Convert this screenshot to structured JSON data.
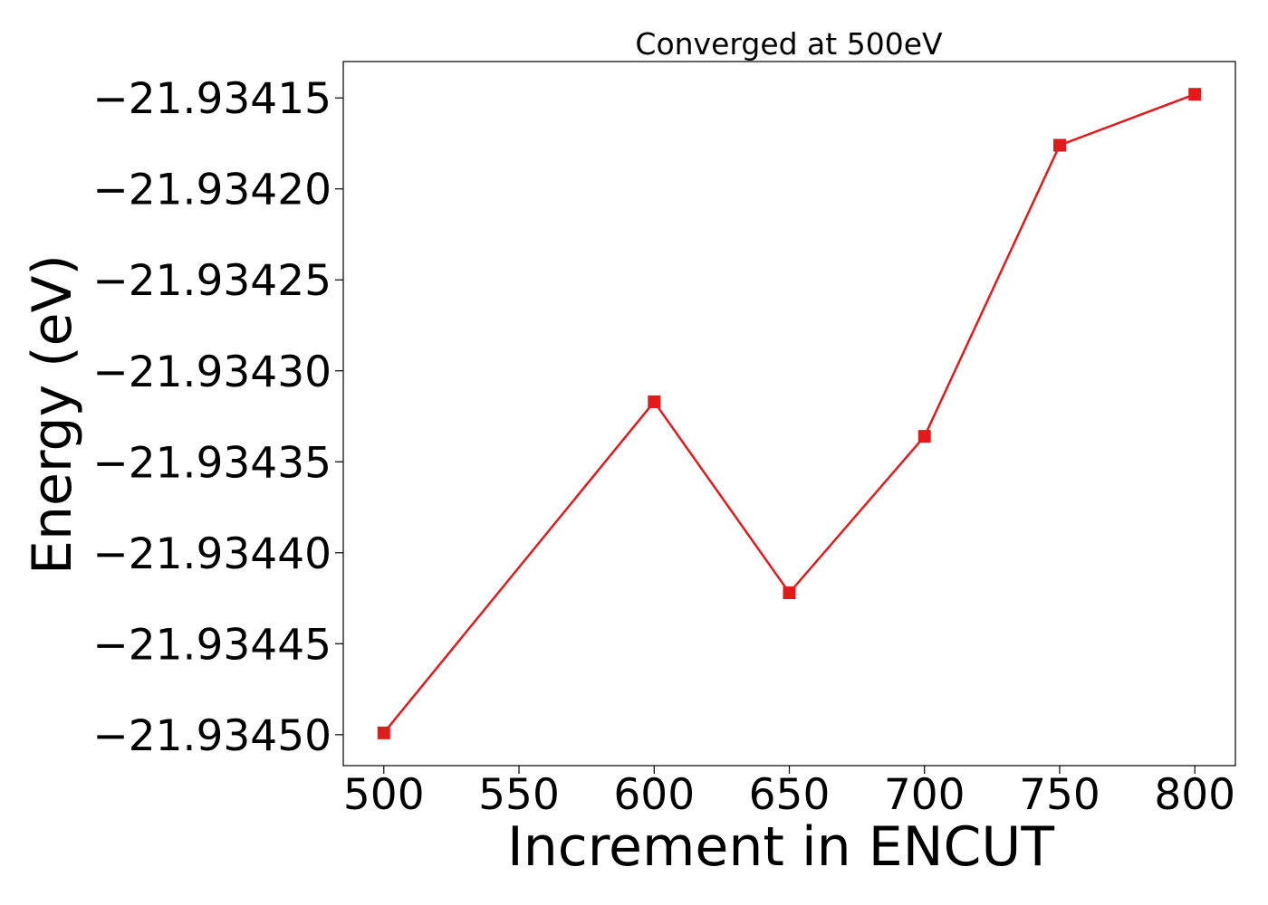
{
  "chart_data": {
    "type": "line",
    "title": "Converged at 500eV",
    "xlabel": "Increment in ENCUT",
    "ylabel": "Energy (eV)",
    "x": [
      500,
      600,
      650,
      700,
      750,
      800
    ],
    "series": [
      {
        "values": [
          -21.934499,
          -21.934317,
          -21.934422,
          -21.934336,
          -21.934176,
          -21.934148
        ],
        "color": "#e31a1c",
        "marker": "square"
      }
    ],
    "xlim": [
      485,
      815
    ],
    "ylim": [
      -21.934517,
      -21.93413
    ],
    "xticks": [
      500,
      550,
      600,
      650,
      700,
      750,
      800
    ],
    "xtick_labels": [
      "500",
      "550",
      "600",
      "650",
      "700",
      "750",
      "800"
    ],
    "yticks": [
      -21.93415,
      -21.9342,
      -21.93425,
      -21.9343,
      -21.93435,
      -21.9344,
      -21.93445,
      -21.9345
    ],
    "ytick_labels": [
      "−21.93415",
      "−21.93420",
      "−21.93425",
      "−21.93430",
      "−21.93435",
      "−21.93440",
      "−21.93445",
      "−21.93450"
    ],
    "grid": false,
    "legend": "none"
  }
}
